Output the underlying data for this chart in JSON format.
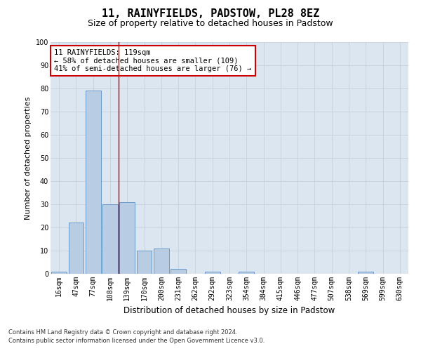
{
  "title": "11, RAINYFIELDS, PADSTOW, PL28 8EZ",
  "subtitle": "Size of property relative to detached houses in Padstow",
  "xlabel": "Distribution of detached houses by size in Padstow",
  "ylabel": "Number of detached properties",
  "footnote1": "Contains HM Land Registry data © Crown copyright and database right 2024.",
  "footnote2": "Contains public sector information licensed under the Open Government Licence v3.0.",
  "bin_labels": [
    "16sqm",
    "47sqm",
    "77sqm",
    "108sqm",
    "139sqm",
    "170sqm",
    "200sqm",
    "231sqm",
    "262sqm",
    "292sqm",
    "323sqm",
    "354sqm",
    "384sqm",
    "415sqm",
    "446sqm",
    "477sqm",
    "507sqm",
    "538sqm",
    "569sqm",
    "599sqm",
    "630sqm"
  ],
  "bar_values": [
    1,
    22,
    79,
    30,
    31,
    10,
    11,
    2,
    0,
    1,
    0,
    1,
    0,
    0,
    0,
    0,
    0,
    0,
    1,
    0,
    0
  ],
  "bar_color": "#b8cce4",
  "bar_edgecolor": "#5a8fc4",
  "grid_color": "#c8d0dc",
  "background_color": "#dce6f0",
  "vline_x": 3.5,
  "vline_color": "#cc0000",
  "annotation_line1": "11 RAINYFIELDS: 119sqm",
  "annotation_line2": "← 58% of detached houses are smaller (109)",
  "annotation_line3": "41% of semi-detached houses are larger (76) →",
  "annotation_box_color": "#ffffff",
  "annotation_box_edgecolor": "#cc0000",
  "ylim": [
    0,
    100
  ],
  "yticks": [
    0,
    10,
    20,
    30,
    40,
    50,
    60,
    70,
    80,
    90,
    100
  ],
  "title_fontsize": 11,
  "subtitle_fontsize": 9,
  "ylabel_fontsize": 8,
  "xlabel_fontsize": 8.5,
  "tick_fontsize": 7,
  "annotation_fontsize": 7.5,
  "footnote_fontsize": 6
}
